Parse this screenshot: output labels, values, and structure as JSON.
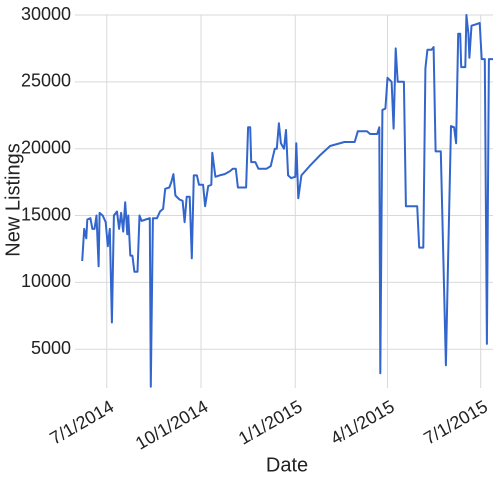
{
  "chart_data": {
    "type": "line",
    "xlabel": "Date",
    "ylabel": "New Listings",
    "x": [
      "2014-06-07",
      "2014-06-09",
      "2014-06-11",
      "2014-06-12",
      "2014-06-15",
      "2014-06-17",
      "2014-06-19",
      "2014-06-21",
      "2014-06-23",
      "2014-06-24",
      "2014-06-27",
      "2014-06-30",
      "2014-07-02",
      "2014-07-04",
      "2014-07-06",
      "2014-07-08",
      "2014-07-11",
      "2014-07-13",
      "2014-07-15",
      "2014-07-17",
      "2014-07-19",
      "2014-07-21",
      "2014-07-22",
      "2014-07-24",
      "2014-07-26",
      "2014-07-28",
      "2014-07-31",
      "2014-08-02",
      "2014-08-04",
      "2014-08-08",
      "2014-08-12",
      "2014-08-13",
      "2014-08-15",
      "2014-08-19",
      "2014-08-22",
      "2014-08-25",
      "2014-08-27",
      "2014-08-31",
      "2014-09-02",
      "2014-09-04",
      "2014-09-06",
      "2014-09-10",
      "2014-09-13",
      "2014-09-15",
      "2014-09-17",
      "2014-09-20",
      "2014-09-22",
      "2014-09-24",
      "2014-09-27",
      "2014-09-29",
      "2014-10-03",
      "2014-10-05",
      "2014-10-08",
      "2014-10-11",
      "2014-10-12",
      "2014-10-15",
      "2014-10-19",
      "2014-10-24",
      "2014-10-29",
      "2014-11-01",
      "2014-11-04",
      "2014-11-06",
      "2014-11-10",
      "2014-11-14",
      "2014-11-16",
      "2014-11-18",
      "2014-11-19",
      "2014-11-23",
      "2014-11-26",
      "2014-12-01",
      "2014-12-04",
      "2014-12-08",
      "2014-12-12",
      "2014-12-14",
      "2014-12-16",
      "2014-12-18",
      "2014-12-21",
      "2014-12-23",
      "2014-12-25",
      "2014-12-28",
      "2015-01-01",
      "2015-01-02",
      "2015-01-04",
      "2015-01-07",
      "2015-01-15",
      "2015-01-25",
      "2015-02-04",
      "2015-02-18",
      "2015-02-28",
      "2015-03-03",
      "2015-03-12",
      "2015-03-15",
      "2015-03-22",
      "2015-03-24",
      "2015-03-25",
      "2015-03-27",
      "2015-03-30",
      "2015-04-01",
      "2015-04-05",
      "2015-04-07",
      "2015-04-09",
      "2015-04-11",
      "2015-04-15",
      "2015-04-17",
      "2015-04-19",
      "2015-04-25",
      "2015-04-30",
      "2015-05-02",
      "2015-05-06",
      "2015-05-08",
      "2015-05-10",
      "2015-05-14",
      "2015-05-16",
      "2015-05-18",
      "2015-05-21",
      "2015-05-23",
      "2015-05-28",
      "2015-05-30",
      "2015-06-02",
      "2015-06-05",
      "2015-06-07",
      "2015-06-09",
      "2015-06-11",
      "2015-06-12",
      "2015-06-16",
      "2015-06-17",
      "2015-06-19",
      "2015-06-20",
      "2015-06-22",
      "2015-06-26",
      "2015-06-30",
      "2015-07-02",
      "2015-07-05",
      "2015-07-07",
      "2015-07-09",
      "2015-07-13"
    ],
    "values": [
      11600,
      14000,
      13300,
      14700,
      14800,
      14000,
      14000,
      15000,
      11200,
      15200,
      15000,
      14500,
      12700,
      14000,
      7000,
      15000,
      15300,
      14000,
      15200,
      13800,
      16000,
      13600,
      15000,
      12000,
      12000,
      10800,
      10800,
      15000,
      14600,
      14700,
      14800,
      2200,
      14800,
      14800,
      15300,
      15500,
      17000,
      17100,
      17500,
      18100,
      16500,
      16200,
      16100,
      14500,
      16400,
      16400,
      11800,
      18000,
      18000,
      17300,
      17300,
      15700,
      17200,
      17300,
      19700,
      17900,
      18000,
      18100,
      18300,
      18500,
      18500,
      17100,
      17100,
      17100,
      21600,
      21600,
      19000,
      19000,
      18500,
      18500,
      18500,
      18700,
      20000,
      20000,
      21900,
      20400,
      20000,
      21400,
      18000,
      17800,
      17900,
      20400,
      16300,
      18000,
      18700,
      19500,
      20200,
      20500,
      20500,
      21300,
      21300,
      21100,
      21100,
      21600,
      3200,
      22900,
      23000,
      25300,
      25000,
      21500,
      27500,
      25000,
      25000,
      25000,
      15700,
      15700,
      15700,
      12600,
      12600,
      26000,
      27400,
      27400,
      27600,
      19800,
      19800,
      19800,
      3800,
      11000,
      21700,
      21600,
      20400,
      28600,
      28600,
      26100,
      26100,
      30000,
      28600,
      26800,
      29200,
      29300,
      29400,
      26700,
      26700,
      5400,
      26700,
      26700
    ],
    "color": "#3366cc",
    "xlim": [
      "2014-05-31",
      "2015-07-13"
    ],
    "xticks": [
      {
        "value": "2014-07-01",
        "label": "7/1/2014"
      },
      {
        "value": "2014-10-01",
        "label": "10/1/2014"
      },
      {
        "value": "2015-01-01",
        "label": "1/1/2015"
      },
      {
        "value": "2015-04-01",
        "label": "4/1/2015"
      },
      {
        "value": "2015-07-01",
        "label": "7/1/2015"
      }
    ],
    "ylim": [
      2100,
      30000
    ],
    "yticks": [
      5000,
      10000,
      15000,
      20000,
      25000,
      30000
    ],
    "grid": true
  }
}
